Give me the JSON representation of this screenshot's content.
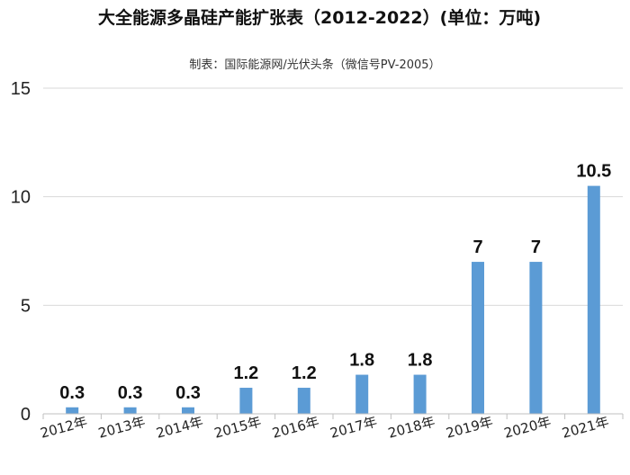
{
  "chart_data": {
    "type": "bar",
    "title": "大全能源多晶硅产能扩张表（2012-2022）(单位：万吨)",
    "subtitle": "制表：国际能源网/光伏头条（微信号PV-2005）",
    "categories": [
      "2012年",
      "2013年",
      "2014年",
      "2015年",
      "2016年",
      "2017年",
      "2018年",
      "2019年",
      "2020年",
      "2021年"
    ],
    "values": [
      0.3,
      0.3,
      0.3,
      1.2,
      1.2,
      1.8,
      1.8,
      7,
      7,
      10.5
    ],
    "data_labels": [
      "0.3",
      "0.3",
      "0.3",
      "1.2",
      "1.2",
      "1.8",
      "1.8",
      "7",
      "7",
      "10.5"
    ],
    "yticks": [
      "0",
      "5",
      "10",
      "15"
    ],
    "ylim": [
      0,
      15
    ],
    "xlabel": "",
    "ylabel": "",
    "grid": "horizontal",
    "legend": "none",
    "bar_color": "#5B9BD5"
  }
}
